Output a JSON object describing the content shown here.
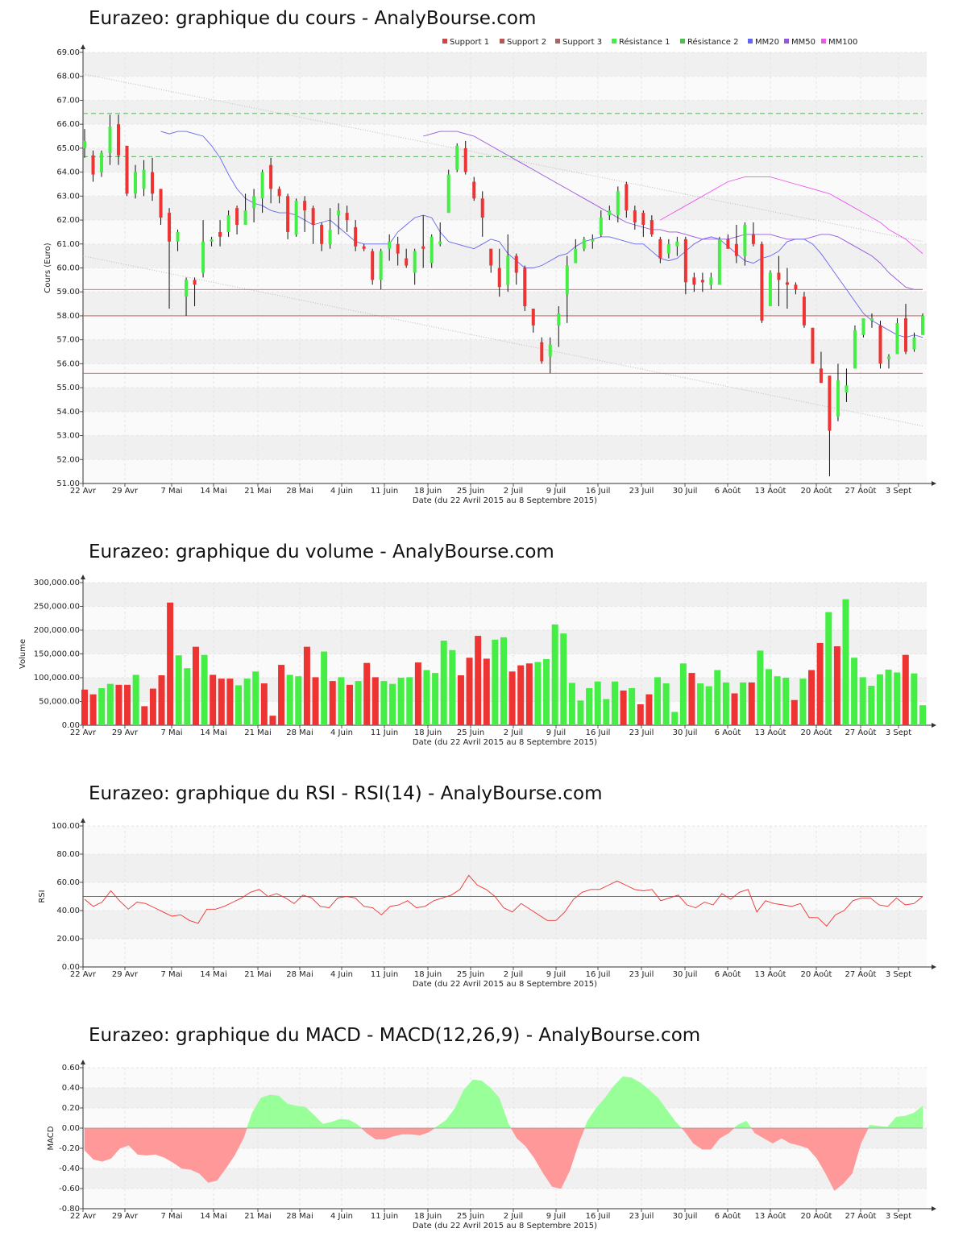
{
  "x_tick_labels": [
    "22 Avr",
    "29 Avr",
    "7 Mai",
    "14 Mai",
    "21 Mai",
    "28 Mai",
    "4 Juin",
    "11 Juin",
    "18 Juin",
    "25 Juin",
    "2 Juil",
    "9 Juil",
    "16 Juil",
    "23 Juil",
    "30 Juil",
    "6 Août",
    "13 Août",
    "20 Août",
    "27 Août",
    "3 Sept"
  ],
  "x_axis_label": "Date (du 22 Avril 2015 au 8 Septembre 2015)",
  "colors": {
    "up": "#44ee44",
    "down": "#ee3333",
    "mm20": "#6666ee",
    "mm50": "#9955dd",
    "mm100": "#ee55ee",
    "support": "#cc4444",
    "resistance": "#44aa44",
    "macd_pos": "#99ff99",
    "macd_neg": "#ff9999"
  },
  "chart_data": [
    {
      "type": "candlestick",
      "title": "Eurazeo: graphique du cours - AnalyBourse.com",
      "ylabel": "Cours (Euro)",
      "xlabel": "Date (du 22 Avril 2015 au 8 Septembre 2015)",
      "ylim": [
        51,
        69
      ],
      "yticks": [
        "51.00",
        "52.00",
        "53.00",
        "54.00",
        "55.00",
        "56.00",
        "57.00",
        "58.00",
        "59.00",
        "60.00",
        "61.00",
        "62.00",
        "63.00",
        "64.00",
        "65.00",
        "66.00",
        "67.00",
        "68.00",
        "69.00"
      ],
      "legend": [
        "Support 1",
        "Support 2",
        "Support 3",
        "Résistance 1",
        "Résistance 2",
        "MM20",
        "MM50",
        "MM100"
      ],
      "legend_position": "top-right",
      "support_levels": [
        59.1,
        58.0,
        55.6
      ],
      "resistance_levels": [
        64.65,
        66.45
      ],
      "candles": [
        [
          65.0,
          65.3,
          65.8,
          64.6
        ],
        [
          64.7,
          63.9,
          64.9,
          63.6
        ],
        [
          64.0,
          64.8,
          64.9,
          63.8
        ],
        [
          64.8,
          65.9,
          66.4,
          64.3
        ],
        [
          66.0,
          64.7,
          66.4,
          64.3
        ],
        [
          65.1,
          63.1,
          65.1,
          63.0
        ],
        [
          63.1,
          64.0,
          64.3,
          62.9
        ],
        [
          63.3,
          64.1,
          64.5,
          63.0
        ],
        [
          64.0,
          63.1,
          64.6,
          62.8
        ],
        [
          63.3,
          62.1,
          63.3,
          61.8
        ],
        [
          62.3,
          61.1,
          62.5,
          58.3
        ],
        [
          61.1,
          61.5,
          61.6,
          60.7
        ],
        [
          58.8,
          59.5,
          59.6,
          58.0
        ],
        [
          59.5,
          59.3,
          59.6,
          58.4
        ],
        [
          59.8,
          61.1,
          62.0,
          59.6
        ],
        [
          61.1,
          61.2,
          61.3,
          60.9
        ],
        [
          61.5,
          61.3,
          62.0,
          60.9
        ],
        [
          61.5,
          62.2,
          62.4,
          61.3
        ],
        [
          62.5,
          61.8,
          62.6,
          61.4
        ],
        [
          61.8,
          62.4,
          63.1,
          61.8
        ],
        [
          62.5,
          63.0,
          63.3,
          61.9
        ],
        [
          62.9,
          64.0,
          64.1,
          62.3
        ],
        [
          64.3,
          63.3,
          64.6,
          62.7
        ],
        [
          63.3,
          63.0,
          63.4,
          62.7
        ],
        [
          63.0,
          61.5,
          63.1,
          61.2
        ],
        [
          61.4,
          62.8,
          62.9,
          61.3
        ],
        [
          62.8,
          62.4,
          63.0,
          61.5
        ],
        [
          62.5,
          61.8,
          62.6,
          61.0
        ],
        [
          61.8,
          61.0,
          61.9,
          60.7
        ],
        [
          61.0,
          61.6,
          62.5,
          60.8
        ],
        [
          62.2,
          62.4,
          62.7,
          61.4
        ],
        [
          62.3,
          62.0,
          62.6,
          61.5
        ],
        [
          61.7,
          60.9,
          62.0,
          60.7
        ],
        [
          60.9,
          60.8,
          61.0,
          60.7
        ],
        [
          60.7,
          59.5,
          60.8,
          59.3
        ],
        [
          59.5,
          60.7,
          60.8,
          59.1
        ],
        [
          60.8,
          61.1,
          61.4,
          60.3
        ],
        [
          61.0,
          60.6,
          61.3,
          60.1
        ],
        [
          60.4,
          60.1,
          60.8,
          60.0
        ],
        [
          59.8,
          60.7,
          60.8,
          59.3
        ],
        [
          60.9,
          60.8,
          62.2,
          60.0
        ],
        [
          60.2,
          61.3,
          61.4,
          60.0
        ],
        [
          61.0,
          61.1,
          61.9,
          60.9
        ],
        [
          62.3,
          63.9,
          64.1,
          62.3
        ],
        [
          64.1,
          65.1,
          65.2,
          64.0
        ],
        [
          65.0,
          64.0,
          65.3,
          63.9
        ],
        [
          63.6,
          62.9,
          63.8,
          62.8
        ],
        [
          62.9,
          62.1,
          63.2,
          61.3
        ],
        [
          60.8,
          60.1,
          60.8,
          59.8
        ],
        [
          60.0,
          59.2,
          60.8,
          58.8
        ],
        [
          59.3,
          60.5,
          61.4,
          59.0
        ],
        [
          60.5,
          59.8,
          60.6,
          59.3
        ],
        [
          60.0,
          58.4,
          60.1,
          58.2
        ],
        [
          58.3,
          57.6,
          58.3,
          57.3
        ],
        [
          56.9,
          56.1,
          57.1,
          56.0
        ],
        [
          56.3,
          56.8,
          57.1,
          55.6
        ],
        [
          57.6,
          58.1,
          58.4,
          56.7
        ],
        [
          58.9,
          60.1,
          60.5,
          57.7
        ],
        [
          60.2,
          60.8,
          61.2,
          60.2
        ],
        [
          60.8,
          61.2,
          61.3,
          60.7
        ],
        [
          61.1,
          61.2,
          61.4,
          60.8
        ],
        [
          61.4,
          62.1,
          62.4,
          61.3
        ],
        [
          62.2,
          62.4,
          62.6,
          62.0
        ],
        [
          62.2,
          63.2,
          63.4,
          61.9
        ],
        [
          63.5,
          62.4,
          63.6,
          62.1
        ],
        [
          62.4,
          61.9,
          62.6,
          61.6
        ],
        [
          62.3,
          61.8,
          62.4,
          61.3
        ],
        [
          62.0,
          61.4,
          62.2,
          61.3
        ],
        [
          61.2,
          60.4,
          61.3,
          60.2
        ],
        [
          60.6,
          61.0,
          61.2,
          60.4
        ],
        [
          60.9,
          61.1,
          61.3,
          60.5
        ],
        [
          61.2,
          59.4,
          61.3,
          58.9
        ],
        [
          59.6,
          59.3,
          59.8,
          59.0
        ],
        [
          59.5,
          59.4,
          59.8,
          59.0
        ],
        [
          59.3,
          59.6,
          59.8,
          59.1
        ],
        [
          59.3,
          61.2,
          61.3,
          59.3
        ],
        [
          61.2,
          60.8,
          61.4,
          60.8
        ],
        [
          61.0,
          60.5,
          61.8,
          60.2
        ],
        [
          60.5,
          61.8,
          61.9,
          60.1
        ],
        [
          61.4,
          61.0,
          61.9,
          60.9
        ],
        [
          61.0,
          57.8,
          61.1,
          57.7
        ],
        [
          58.4,
          59.8,
          59.9,
          58.4
        ],
        [
          59.8,
          59.5,
          60.5,
          58.4
        ],
        [
          59.4,
          59.3,
          60.0,
          58.3
        ],
        [
          59.3,
          59.1,
          59.4,
          58.9
        ],
        [
          58.8,
          57.6,
          59.0,
          57.5
        ],
        [
          57.5,
          56.0,
          57.5,
          56.0
        ],
        [
          55.8,
          55.2,
          56.5,
          55.2
        ],
        [
          55.5,
          53.2,
          55.5,
          51.3
        ],
        [
          53.8,
          55.3,
          56.0,
          53.6
        ],
        [
          54.8,
          55.1,
          55.8,
          54.4
        ],
        [
          55.8,
          57.4,
          57.6,
          55.8
        ],
        [
          57.2,
          57.9,
          57.9,
          57.1
        ],
        [
          57.8,
          57.9,
          58.1,
          57.5
        ],
        [
          57.6,
          56.0,
          57.8,
          55.8
        ],
        [
          56.2,
          56.3,
          56.4,
          55.8
        ],
        [
          56.4,
          57.7,
          57.9,
          56.4
        ],
        [
          57.9,
          56.5,
          58.5,
          56.4
        ],
        [
          56.6,
          57.1,
          57.3,
          56.5
        ],
        [
          57.2,
          58.0,
          58.1,
          57.2
        ]
      ],
      "mm20": [
        65.7,
        65.6,
        65.7,
        65.7,
        65.6,
        65.5,
        65.1,
        64.6,
        63.9,
        63.3,
        62.9,
        62.7,
        62.6,
        62.4,
        62.3,
        62.3,
        62.2,
        62.0,
        61.8,
        61.9,
        62.0,
        61.7,
        61.4,
        61.1,
        61.0,
        61.0,
        61.0,
        61.0,
        61.5,
        61.8,
        62.1,
        62.2,
        62.1,
        61.5,
        61.1,
        61.0,
        60.9,
        60.8,
        61.0,
        61.2,
        61.1,
        60.6,
        60.3,
        60.0,
        60.0,
        60.1,
        60.3,
        60.5,
        60.6,
        60.9,
        61.1,
        61.2,
        61.3,
        61.3,
        61.2,
        61.1,
        61.0,
        61.0,
        60.7,
        60.4,
        60.3,
        60.4,
        60.7,
        61.0,
        61.2,
        61.3,
        61.2,
        60.9,
        60.6,
        60.3,
        60.2,
        60.4,
        60.5,
        60.7,
        61.1,
        61.2,
        61.2,
        61.0,
        60.6,
        60.1,
        59.6,
        59.1,
        58.6,
        58.1,
        57.8,
        57.6,
        57.4,
        57.2,
        57.1,
        57.2,
        57.1
      ],
      "mm50": [
        65.5,
        65.6,
        65.7,
        65.7,
        65.7,
        65.6,
        65.5,
        65.3,
        65.1,
        64.9,
        64.7,
        64.5,
        64.3,
        64.1,
        63.9,
        63.7,
        63.5,
        63.3,
        63.1,
        62.9,
        62.7,
        62.5,
        62.3,
        62.1,
        61.9,
        61.8,
        61.7,
        61.6,
        61.6,
        61.5,
        61.5,
        61.4,
        61.3,
        61.2,
        61.2,
        61.2,
        61.2,
        61.3,
        61.4,
        61.4,
        61.4,
        61.4,
        61.3,
        61.2,
        61.2,
        61.2,
        61.3,
        61.4,
        61.4,
        61.3,
        61.1,
        60.9,
        60.7,
        60.5,
        60.2,
        59.8,
        59.5,
        59.2,
        59.1,
        59.1
      ],
      "mm100": [
        62.0,
        62.2,
        62.4,
        62.6,
        62.8,
        63.0,
        63.2,
        63.4,
        63.6,
        63.7,
        63.8,
        63.8,
        63.8,
        63.8,
        63.7,
        63.6,
        63.5,
        63.4,
        63.3,
        63.2,
        63.1,
        62.9,
        62.7,
        62.5,
        62.3,
        62.1,
        61.9,
        61.6,
        61.4,
        61.2,
        60.9,
        60.6
      ]
    },
    {
      "type": "bar",
      "title": "Eurazeo: graphique du volume - AnalyBourse.com",
      "ylabel": "Volume",
      "xlabel": "Date (du 22 Avril 2015 au 8 Septembre 2015)",
      "ylim": [
        0,
        300000
      ],
      "yticks": [
        "0.00",
        "50,000.00",
        "100,000.00",
        "150,000.00",
        "200,000.00",
        "250,000.00",
        "300,000.00"
      ],
      "values": [
        75000,
        65000,
        78000,
        87000,
        85000,
        85000,
        106000,
        40000,
        77000,
        105000,
        258000,
        147000,
        120000,
        165000,
        148000,
        106000,
        98000,
        98000,
        84000,
        98000,
        113000,
        88000,
        20000,
        127000,
        106000,
        103000,
        165000,
        101000,
        155000,
        93000,
        101000,
        85000,
        93000,
        131000,
        101000,
        93000,
        87000,
        100000,
        101000,
        132000,
        116000,
        110000,
        178000,
        158000,
        105000,
        142000,
        188000,
        140000,
        180000,
        185000,
        113000,
        126000,
        130000,
        133000,
        139000,
        212000,
        193000,
        89000,
        52000,
        78000,
        92000,
        55000,
        92000,
        73000,
        78000,
        44000,
        65000,
        101000,
        88000,
        28000,
        130000,
        110000,
        88000,
        82000,
        116000,
        90000,
        67000,
        90000,
        90000,
        157000,
        118000,
        103000,
        100000,
        53000,
        98000,
        116000,
        173000,
        238000,
        166000,
        265000,
        142000,
        101000,
        83000,
        107000,
        117000,
        111000,
        148000,
        109000,
        42000
      ]
    },
    {
      "type": "line",
      "title": "Eurazeo: graphique du RSI - RSI(14) - AnalyBourse.com",
      "ylabel": "RSI",
      "xlabel": "Date (du 22 Avril 2015 au 8 Septembre 2015)",
      "ylim": [
        0,
        100
      ],
      "yticks": [
        "0.00",
        "20.00",
        "40.00",
        "60.00",
        "80.00",
        "100.00"
      ],
      "reference_line": 50,
      "values": [
        48,
        43,
        46,
        54,
        47,
        41,
        46,
        45,
        42,
        39,
        36,
        37,
        33,
        31,
        41,
        41,
        43,
        46,
        49,
        53,
        55,
        50,
        52,
        49,
        45,
        51,
        49,
        43,
        42,
        49,
        50,
        49,
        43,
        42,
        37,
        43,
        44,
        47,
        42,
        43,
        47,
        49,
        51,
        55,
        65,
        58,
        55,
        50,
        42,
        39,
        45,
        41,
        37,
        33,
        33,
        39,
        48,
        53,
        55,
        55,
        58,
        61,
        58,
        55,
        54,
        55,
        47,
        49,
        51,
        44,
        42,
        46,
        44,
        52,
        48,
        53,
        55,
        39,
        47,
        45,
        44,
        43,
        45,
        35,
        35,
        29,
        37,
        40,
        47,
        49,
        49,
        44,
        43,
        49,
        44,
        45,
        50
      ]
    },
    {
      "type": "area",
      "title": "Eurazeo: graphique du MACD - MACD(12,26,9) - AnalyBourse.com",
      "ylabel": "MACD",
      "xlabel": "Date (du 22 Avril 2015 au 8 Septembre 2015)",
      "ylim": [
        -0.8,
        0.6
      ],
      "yticks": [
        "-0.80",
        "-0.60",
        "-0.40",
        "-0.20",
        "0.00",
        "0.20",
        "0.40",
        "0.60"
      ],
      "values": [
        -0.22,
        -0.31,
        -0.33,
        -0.3,
        -0.2,
        -0.17,
        -0.26,
        -0.27,
        -0.26,
        -0.29,
        -0.34,
        -0.4,
        -0.41,
        -0.45,
        -0.54,
        -0.52,
        -0.4,
        -0.27,
        -0.1,
        0.15,
        0.3,
        0.33,
        0.32,
        0.24,
        0.22,
        0.21,
        0.13,
        0.04,
        0.06,
        0.09,
        0.08,
        0.03,
        -0.05,
        -0.11,
        -0.11,
        -0.08,
        -0.06,
        -0.06,
        -0.07,
        -0.04,
        0.02,
        0.08,
        0.2,
        0.38,
        0.48,
        0.47,
        0.4,
        0.3,
        0.05,
        -0.1,
        -0.18,
        -0.3,
        -0.45,
        -0.58,
        -0.6,
        -0.42,
        -0.15,
        0.07,
        0.2,
        0.3,
        0.42,
        0.51,
        0.5,
        0.45,
        0.38,
        0.3,
        0.18,
        0.06,
        -0.03,
        -0.15,
        -0.21,
        -0.21,
        -0.1,
        -0.05,
        0.03,
        0.07,
        -0.05,
        -0.1,
        -0.15,
        -0.1,
        -0.15,
        -0.17,
        -0.2,
        -0.3,
        -0.45,
        -0.62,
        -0.55,
        -0.45,
        -0.15,
        0.03,
        0.02,
        0.01,
        0.11,
        0.12,
        0.15,
        0.22
      ]
    }
  ]
}
